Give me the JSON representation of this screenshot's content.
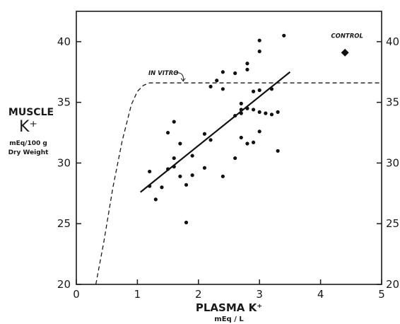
{
  "chart_data": {
    "type": "scatter",
    "xlabel": "PLASMA K⁺",
    "xlabel_unit": "mEq / L",
    "ylabel_main": "MUSCLE",
    "ylabel_symbol": "K⁺",
    "ylabel_unit_1": "mEq/100 g",
    "ylabel_unit_2": "Dry Weight",
    "xlim": [
      0,
      5
    ],
    "ylim": [
      20,
      42.5
    ],
    "x_ticks": [
      0,
      1,
      2,
      3,
      4,
      5
    ],
    "x_tick_labels": [
      "0",
      "1",
      "2",
      "3",
      "4",
      "5"
    ],
    "y_ticks": [
      20,
      25,
      30,
      35,
      40
    ],
    "y_tick_labels": [
      "20",
      "25",
      "30",
      "35",
      "40"
    ],
    "points": [
      [
        1.2,
        29.3
      ],
      [
        1.2,
        28.1
      ],
      [
        1.3,
        27.0
      ],
      [
        1.4,
        28.0
      ],
      [
        1.5,
        29.5
      ],
      [
        1.5,
        32.5
      ],
      [
        1.6,
        33.4
      ],
      [
        1.6,
        30.4
      ],
      [
        1.6,
        29.7
      ],
      [
        1.7,
        31.6
      ],
      [
        1.7,
        28.9
      ],
      [
        1.8,
        28.2
      ],
      [
        1.8,
        25.1
      ],
      [
        1.9,
        29.0
      ],
      [
        1.9,
        30.6
      ],
      [
        2.1,
        29.6
      ],
      [
        2.1,
        32.4
      ],
      [
        2.2,
        31.9
      ],
      [
        2.2,
        36.3
      ],
      [
        2.3,
        36.8
      ],
      [
        2.4,
        37.5
      ],
      [
        2.4,
        36.1
      ],
      [
        2.4,
        28.9
      ],
      [
        2.6,
        37.4
      ],
      [
        2.6,
        33.9
      ],
      [
        2.6,
        30.4
      ],
      [
        2.7,
        34.9
      ],
      [
        2.7,
        34.4
      ],
      [
        2.7,
        34.1
      ],
      [
        2.7,
        32.1
      ],
      [
        2.8,
        34.5
      ],
      [
        2.8,
        37.7
      ],
      [
        2.8,
        38.2
      ],
      [
        2.8,
        31.6
      ],
      [
        2.9,
        35.9
      ],
      [
        2.9,
        34.4
      ],
      [
        2.9,
        31.7
      ],
      [
        3.0,
        40.1
      ],
      [
        3.0,
        39.2
      ],
      [
        3.0,
        36.0
      ],
      [
        3.0,
        34.2
      ],
      [
        3.0,
        32.6
      ],
      [
        3.1,
        34.1
      ],
      [
        3.2,
        36.1
      ],
      [
        3.2,
        34.0
      ],
      [
        3.3,
        34.2
      ],
      [
        3.3,
        31.0
      ],
      [
        3.4,
        40.5
      ]
    ],
    "regression_line": {
      "x": [
        1.05,
        3.5
      ],
      "y": [
        27.6,
        37.5
      ]
    },
    "in_vitro_curve": {
      "label": "IN VITRO",
      "x": [
        0.32,
        0.45,
        0.6,
        0.75,
        0.9,
        1.0,
        1.1,
        1.2,
        1.4,
        2.0,
        3.0,
        4.0,
        5.0
      ],
      "y": [
        20.0,
        23.5,
        28.0,
        31.8,
        34.8,
        35.9,
        36.4,
        36.6,
        36.6,
        36.6,
        36.6,
        36.6,
        36.6
      ]
    },
    "control": {
      "label": "CONTROL",
      "x": 4.4,
      "y": 39.1
    }
  }
}
